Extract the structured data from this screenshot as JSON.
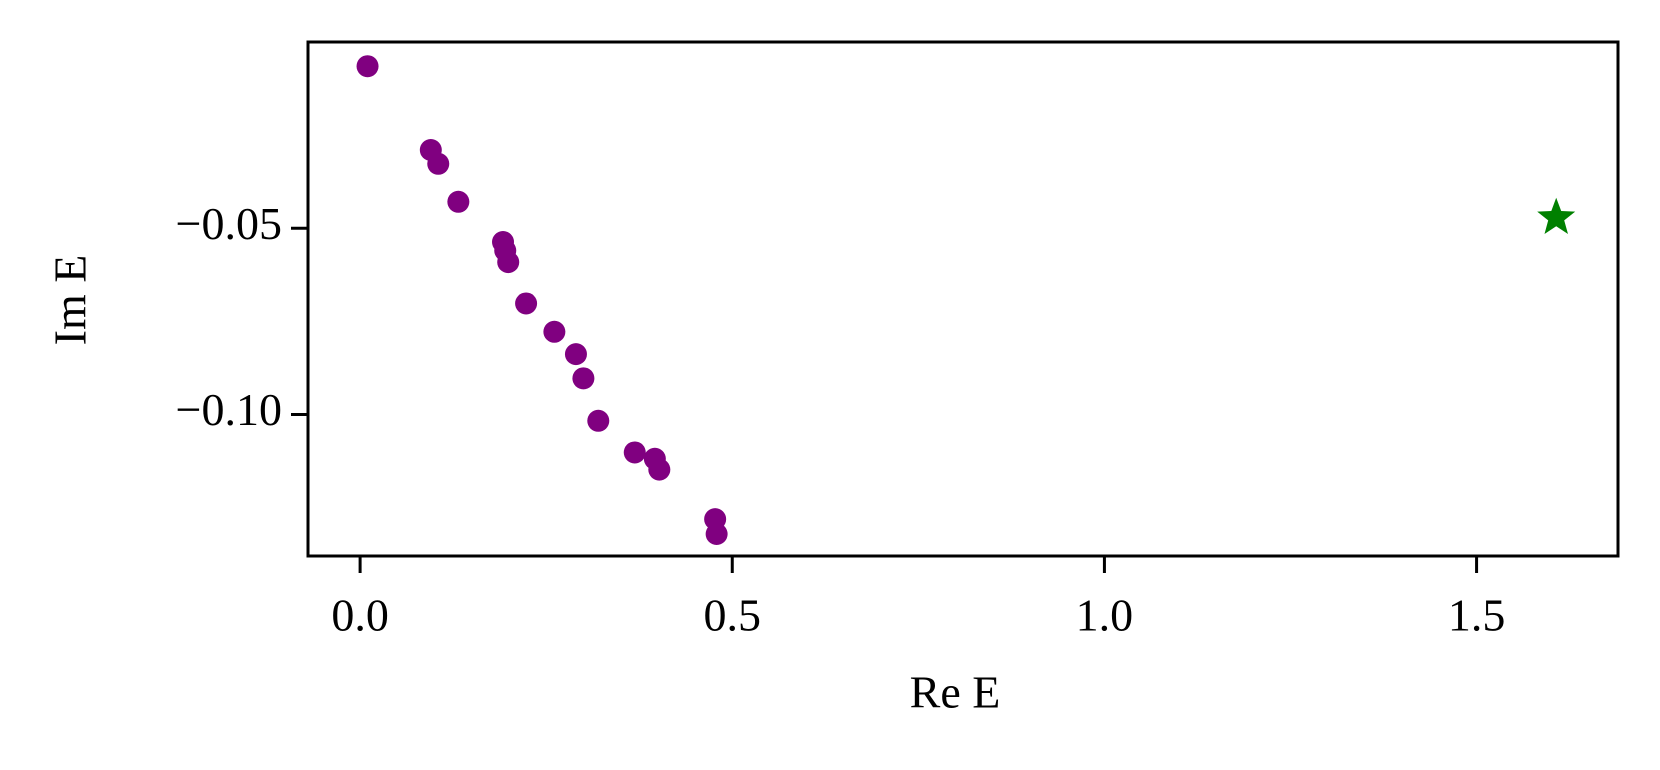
{
  "chart_data": {
    "type": "scatter",
    "xlabel": "Re E",
    "ylabel": "Im E",
    "xlim": [
      -0.07,
      1.69
    ],
    "ylim": [
      -0.138,
      0.0
    ],
    "xticks": [
      {
        "value": 0,
        "label": "0.0"
      },
      0.5,
      {
        "value": 1,
        "label": "1.0"
      },
      1.5
    ],
    "yticks": [
      {
        "value": -0.05,
        "label": "−0.05"
      },
      {
        "value": -0.1,
        "label": "−0.10"
      }
    ],
    "grid": false,
    "series": [
      {
        "color": "#800080",
        "marker": "circle",
        "x": [
          0.01,
          0.095,
          0.105,
          0.132,
          0.192,
          0.195,
          0.199,
          0.223,
          0.261,
          0.29,
          0.3,
          0.32,
          0.369,
          0.396,
          0.402,
          0.477,
          0.479
        ],
        "values": [
          -0.0065,
          -0.029,
          -0.0327,
          -0.0429,
          -0.0537,
          -0.056,
          -0.0591,
          -0.0702,
          -0.0778,
          -0.0838,
          -0.0903,
          -0.1017,
          -0.1102,
          -0.1119,
          -0.1148,
          -0.1281,
          -0.1321
        ]
      },
      {
        "color": "#008000",
        "marker": "star",
        "x": [
          1.607
        ],
        "values": [
          -0.0472
        ]
      }
    ]
  }
}
